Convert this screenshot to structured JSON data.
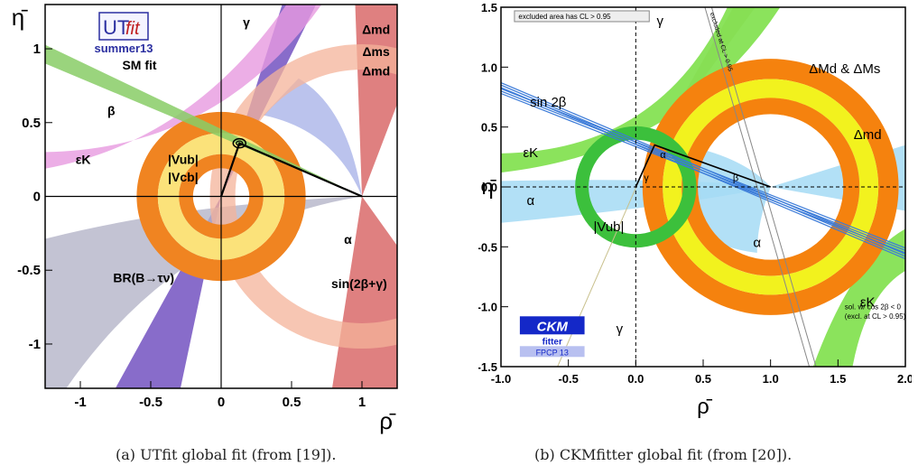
{
  "panels": [
    {
      "id": "a",
      "caption": "(a) UTfit global fit (from [19]).",
      "xlim": [
        -1.25,
        1.25
      ],
      "ylim": [
        -1.3,
        1.3
      ],
      "xticks": [
        -1,
        -0.5,
        0,
        0.5,
        1
      ],
      "xticklabels": [
        "-1",
        "-0.5",
        "0",
        "0.5",
        "1"
      ],
      "yticks": [
        -1,
        -0.5,
        0,
        0.5,
        1
      ],
      "yticklabels": [
        "-1",
        "-0.5",
        "0",
        "0.5",
        "1"
      ],
      "xlabel": "ρ̄",
      "ylabel": "η̄",
      "logo": {
        "top": "UT",
        "fit": "fit",
        "sub": "summer13",
        "brand_color": "#2b2fa0"
      },
      "annotations": [
        {
          "text": "SM fit",
          "x": -0.58,
          "y": 0.86
        },
        {
          "text": "β",
          "x": -0.78,
          "y": 0.55
        },
        {
          "text": "γ",
          "x": 0.18,
          "y": 1.15
        },
        {
          "text": "Δmd",
          "x": 1.1,
          "y": 1.1
        },
        {
          "text": "Δms",
          "x": 1.1,
          "y": 0.95
        },
        {
          "text": "Δmd",
          "x": 1.1,
          "y": 0.82
        },
        {
          "text": "εK",
          "x": -0.98,
          "y": 0.22
        },
        {
          "text": "|Vub|",
          "x": -0.27,
          "y": 0.22
        },
        {
          "text": "|Vcb|",
          "x": -0.27,
          "y": 0.1
        },
        {
          "text": "α",
          "x": 0.9,
          "y": -0.32
        },
        {
          "text": "BR(B→τν)",
          "x": -0.55,
          "y": -0.58
        },
        {
          "text": "sin(2β+γ)",
          "x": 0.98,
          "y": -0.62
        }
      ],
      "fit_point": {
        "rho": 0.13,
        "eta": 0.36
      },
      "colors": {
        "purple": "#7b5cc4",
        "pink": "#e79ae0",
        "green": "#88cc66",
        "orange": "#f08421",
        "yellow": "#f6e24a",
        "salmon": "#d96a6a",
        "grey": "#b4b4c8",
        "lightblue": "#aab4e8",
        "lightsalmon": "#f4b39a",
        "darkred": "#a33333"
      }
    },
    {
      "id": "b",
      "caption": "(b) CKMfitter global fit (from [20]).",
      "xlim": [
        -1.0,
        2.0
      ],
      "ylim": [
        -1.5,
        1.5
      ],
      "xticks": [
        -1,
        -0.5,
        0,
        0.5,
        1,
        1.5,
        2
      ],
      "xticklabels": [
        "-1.0",
        "-0.5",
        "0.0",
        "0.5",
        "1.0",
        "1.5",
        "2.0"
      ],
      "yticks": [
        -1.5,
        -1,
        -0.5,
        0,
        0.5,
        1,
        1.5
      ],
      "yticklabels": [
        "-1.5",
        "-1.0",
        "-0.5",
        "0.0",
        "0.5",
        "1.0",
        "1.5"
      ],
      "xlabel": "ρ̄",
      "ylabel": "η̄",
      "legend_box": "excluded area has CL > 0.95",
      "excluded_label": "excluded at CL > 0.95",
      "note1": "sol. w/ cos 2β < 0",
      "note2": "(excl. at CL > 0.95)",
      "logo": {
        "top": "CKM",
        "sub": "fitter",
        "tag": "FPCP 13",
        "brand_color": "#1428c8"
      },
      "annotations": [
        {
          "text": "γ",
          "x": 0.18,
          "y": 1.35
        },
        {
          "text": "ΔMd & ΔMs",
          "x": 1.55,
          "y": 0.95
        },
        {
          "text": "sin 2β",
          "x": -0.65,
          "y": 0.67
        },
        {
          "text": "Δmd",
          "x": 1.72,
          "y": 0.4
        },
        {
          "text": "εK",
          "x": -0.78,
          "y": 0.25
        },
        {
          "text": "α",
          "x": -0.78,
          "y": -0.15
        },
        {
          "text": "|Vub|",
          "x": -0.2,
          "y": -0.37
        },
        {
          "text": "α",
          "x": 0.9,
          "y": -0.5
        },
        {
          "text": "γ",
          "x": -0.12,
          "y": -1.22
        },
        {
          "text": "εK",
          "x": 1.72,
          "y": -1.0
        }
      ],
      "triangle_labels": {
        "alpha": "α",
        "beta": "β",
        "gamma": "γ"
      },
      "apex": {
        "rho": 0.14,
        "eta": 0.35
      },
      "colors": {
        "green": "#3cc03c",
        "lightgreen": "#7ee04a",
        "orange": "#f5820e",
        "yellow": "#f2f21e",
        "lightblue": "#a4daf4",
        "blue": "#3a7ad8",
        "olive": "#c8c08c"
      }
    }
  ]
}
